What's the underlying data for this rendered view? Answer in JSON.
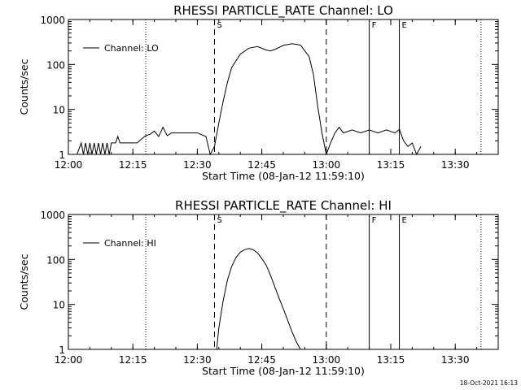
{
  "chart_data": [
    {
      "type": "line",
      "title": "RHESSI PARTICLE_RATE Channel: LO",
      "xlabel": "Start Time (08-Jan-12 11:59:10)",
      "ylabel": "Counts/sec",
      "yscale": "log",
      "ylim": [
        1,
        1000
      ],
      "xlim": [
        "12:00",
        "13:40"
      ],
      "x_ticks": [
        "12:00",
        "12:15",
        "12:30",
        "12:45",
        "13:00",
        "13:15",
        "13:30"
      ],
      "y_ticks": [
        "1",
        "10",
        "100",
        "1000"
      ],
      "legend": {
        "label": "Channel: LO",
        "placement": "top-left"
      },
      "markers": [
        {
          "time": "12:34",
          "label": "S",
          "style": "dashed"
        },
        {
          "time": "13:00",
          "label": "",
          "style": "dashed"
        },
        {
          "time": "13:10",
          "label": "F",
          "style": "solid"
        },
        {
          "time": "13:17",
          "label": "E",
          "style": "solid"
        },
        {
          "time": "12:18",
          "label": "",
          "style": "dotted"
        },
        {
          "time": "13:36",
          "label": "",
          "style": "dotted"
        }
      ],
      "series": [
        {
          "name": "Channel: LO",
          "points": [
            [
              "12:02",
              1
            ],
            [
              "12:03",
              1.8
            ],
            [
              "12:03.5",
              1
            ],
            [
              "12:04",
              1.8
            ],
            [
              "12:04.5",
              1
            ],
            [
              "12:05",
              1.8
            ],
            [
              "12:05.5",
              1
            ],
            [
              "12:06",
              1.8
            ],
            [
              "12:06.5",
              1
            ],
            [
              "12:07",
              1.8
            ],
            [
              "12:07.5",
              1
            ],
            [
              "12:08",
              1.8
            ],
            [
              "12:08.5",
              1
            ],
            [
              "12:09",
              1.8
            ],
            [
              "12:09.5",
              1
            ],
            [
              "12:10",
              1.8
            ],
            [
              "12:11",
              1.8
            ],
            [
              "12:11.5",
              2.5
            ],
            [
              "12:12",
              1.8
            ],
            [
              "12:14",
              1.8
            ],
            [
              "12:16",
              1.8
            ],
            [
              "12:17",
              2.2
            ],
            [
              "12:18",
              2.6
            ],
            [
              "12:19",
              2.8
            ],
            [
              "12:20",
              3.3
            ],
            [
              "12:21",
              2.5
            ],
            [
              "12:22",
              4
            ],
            [
              "12:23",
              2.6
            ],
            [
              "12:24",
              3
            ],
            [
              "12:26",
              3
            ],
            [
              "12:28",
              3
            ],
            [
              "12:30",
              3
            ],
            [
              "12:32",
              2.5
            ],
            [
              "12:33",
              1
            ],
            [
              "12:34",
              1.5
            ],
            [
              "12:35",
              5
            ],
            [
              "12:36",
              15
            ],
            [
              "12:37",
              40
            ],
            [
              "12:38",
              85
            ],
            [
              "12:40",
              170
            ],
            [
              "12:42",
              230
            ],
            [
              "12:44",
              250
            ],
            [
              "12:46",
              210
            ],
            [
              "12:47",
              200
            ],
            [
              "12:48",
              215
            ],
            [
              "12:50",
              265
            ],
            [
              "12:52",
              290
            ],
            [
              "12:54",
              270
            ],
            [
              "12:56",
              150
            ],
            [
              "12:57",
              60
            ],
            [
              "12:58",
              12
            ],
            [
              "12:59",
              3
            ],
            [
              "13:00",
              1
            ],
            [
              "13:01",
              1.8
            ],
            [
              "13:02",
              3
            ],
            [
              "13:03",
              4
            ],
            [
              "13:04",
              3
            ],
            [
              "13:06",
              3.5
            ],
            [
              "13:08",
              3
            ],
            [
              "13:10",
              3.5
            ],
            [
              "13:12",
              3
            ],
            [
              "13:14",
              3.5
            ],
            [
              "13:16",
              3
            ],
            [
              "13:17",
              3.6
            ],
            [
              "13:18",
              2
            ],
            [
              "13:19",
              1.5
            ],
            [
              "13:20",
              1.8
            ],
            [
              "13:21",
              1
            ],
            [
              "13:22",
              1.5
            ]
          ]
        }
      ]
    },
    {
      "type": "line",
      "title": "RHESSI PARTICLE_RATE Channel: HI",
      "xlabel": "Start Time (08-Jan-12 11:59:10)",
      "ylabel": "Counts/sec",
      "yscale": "log",
      "ylim": [
        1,
        1000
      ],
      "xlim": [
        "12:00",
        "13:40"
      ],
      "x_ticks": [
        "12:00",
        "12:15",
        "12:30",
        "12:45",
        "13:00",
        "13:15",
        "13:30"
      ],
      "y_ticks": [
        "1",
        "10",
        "100",
        "1000"
      ],
      "legend": {
        "label": "Channel: HI",
        "placement": "top-left"
      },
      "markers": [
        {
          "time": "12:34",
          "label": "S",
          "style": "dashed"
        },
        {
          "time": "13:00",
          "label": "",
          "style": "dashed"
        },
        {
          "time": "13:10",
          "label": "F",
          "style": "solid"
        },
        {
          "time": "13:17",
          "label": "E",
          "style": "solid"
        },
        {
          "time": "12:18",
          "label": "",
          "style": "dotted"
        },
        {
          "time": "13:36",
          "label": "",
          "style": "dotted"
        }
      ],
      "series": [
        {
          "name": "Channel: HI",
          "points": [
            [
              "12:34.5",
              1
            ],
            [
              "12:35",
              3
            ],
            [
              "12:36",
              12
            ],
            [
              "12:37",
              35
            ],
            [
              "12:38",
              70
            ],
            [
              "12:39",
              110
            ],
            [
              "12:40",
              145
            ],
            [
              "12:41",
              165
            ],
            [
              "12:42",
              175
            ],
            [
              "12:43",
              165
            ],
            [
              "12:44",
              140
            ],
            [
              "12:45",
              105
            ],
            [
              "12:46",
              75
            ],
            [
              "12:47",
              45
            ],
            [
              "12:48",
              25
            ],
            [
              "12:49",
              14
            ],
            [
              "12:50",
              8
            ],
            [
              "12:51",
              4.5
            ],
            [
              "12:52",
              2.5
            ],
            [
              "12:53",
              1.5
            ],
            [
              "12:54",
              1
            ]
          ]
        }
      ]
    }
  ],
  "footer": {
    "timestamp": "18-Oct-2021 16:13"
  }
}
